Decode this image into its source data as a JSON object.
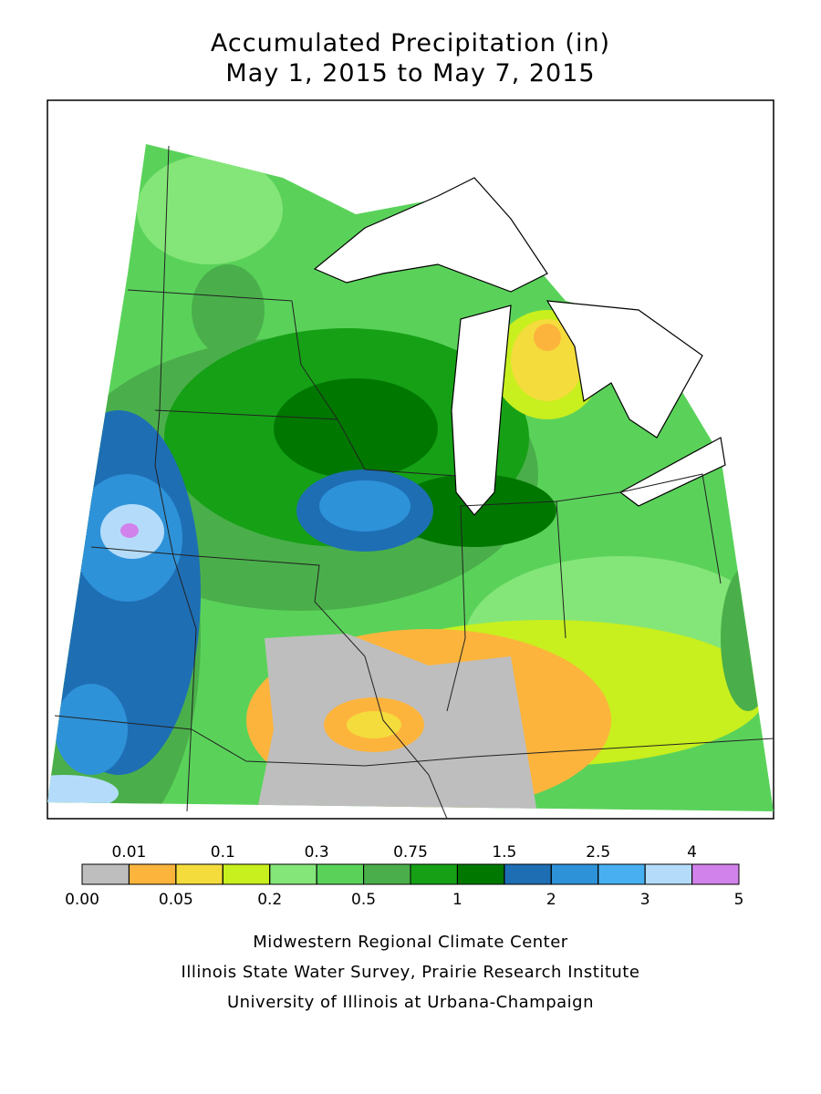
{
  "title": [
    "Accumulated Precipitation (in)",
    "May 1, 2015 to May 7, 2015"
  ],
  "legend": {
    "breaks": [
      {
        "value": 0,
        "label": "0.00"
      },
      0.01,
      0.05,
      0.1,
      0.2,
      0.3,
      0.5,
      0.75,
      1,
      1.5,
      2,
      2.5,
      3,
      4,
      5
    ],
    "colors": [
      "#bebebe",
      "#fdb43c",
      "#f4dc3c",
      "#c8ef1e",
      "#84e678",
      "#5ad25a",
      "#4aaf4a",
      "#16a016",
      "#007800",
      "#1e6eb4",
      "#2e92d8",
      "#48b0f0",
      "#b4dcfa",
      "#d282eb"
    ]
  },
  "credits": [
    "Midwestern Regional Climate Center",
    "Illinois State Water Survey, Prairie Research Institute",
    "University of Illinois at Urbana-Champaign"
  ]
}
